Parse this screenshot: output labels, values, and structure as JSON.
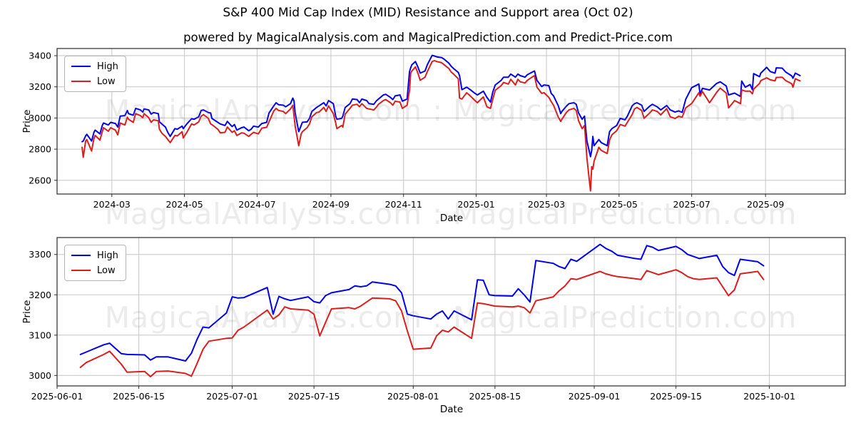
{
  "header": {
    "title": "S&P 400 Mid Cap Index (MID) Resistance and Support area (Oct 02)",
    "subtitle": "powered by MagicalAnalysis.com and MagicalPrediction.com and Predict-Price.com"
  },
  "watermark": {
    "text": "MagicalAnalysis.com : MagicalPrediction.com"
  },
  "colors": {
    "high": "#0000ee",
    "low": "#dd1c1c",
    "grid": "#c6c6c6",
    "spine": "#2a2a2a",
    "tick_text": "#000000"
  },
  "chart_data": [
    {
      "type": "line",
      "xlabel": "Date",
      "ylabel": "Price",
      "grid": true,
      "legend_position": "upper-left",
      "x_domain": [
        "2024-01-15",
        "2025-11-07"
      ],
      "y_domain": [
        2512,
        3446
      ],
      "y_ticks": [
        2600,
        2800,
        3000,
        3200,
        3400
      ],
      "x_ticks": [
        {
          "label": "2024-03",
          "date": "2024-03-01"
        },
        {
          "label": "2024-05",
          "date": "2024-05-01"
        },
        {
          "label": "2024-07",
          "date": "2024-07-01"
        },
        {
          "label": "2024-09",
          "date": "2024-09-01"
        },
        {
          "label": "2024-11",
          "date": "2024-11-01"
        },
        {
          "label": "2025-01",
          "date": "2025-01-01"
        },
        {
          "label": "2025-03",
          "date": "2025-03-01"
        },
        {
          "label": "2025-05",
          "date": "2025-05-01"
        },
        {
          "label": "2025-07",
          "date": "2025-07-01"
        },
        {
          "label": "2025-09",
          "date": "2025-09-01"
        }
      ],
      "series": [
        {
          "name": "High",
          "key": "high",
          "color_key": "high"
        },
        {
          "name": "Low",
          "key": "low",
          "color_key": "low"
        }
      ],
      "dates": [
        "2024-02-05",
        "2024-02-06",
        "2024-02-08",
        "2024-02-09",
        "2024-02-13",
        "2024-02-15",
        "2024-02-16",
        "2024-02-20",
        "2024-02-22",
        "2024-02-23",
        "2024-02-27",
        "2024-02-29",
        "2024-03-04",
        "2024-03-06",
        "2024-03-08",
        "2024-03-12",
        "2024-03-14",
        "2024-03-15",
        "2024-03-19",
        "2024-03-21",
        "2024-03-25",
        "2024-03-27",
        "2024-03-28",
        "2024-04-01",
        "2024-04-03",
        "2024-04-05",
        "2024-04-09",
        "2024-04-10",
        "2024-04-12",
        "2024-04-15",
        "2024-04-17",
        "2024-04-19",
        "2024-04-23",
        "2024-04-25",
        "2024-04-29",
        "2024-04-30",
        "2024-05-03",
        "2024-05-07",
        "2024-05-09",
        "2024-05-13",
        "2024-05-15",
        "2024-05-17",
        "2024-05-21",
        "2024-05-23",
        "2024-05-24",
        "2024-05-29",
        "2024-05-31",
        "2024-06-04",
        "2024-06-06",
        "2024-06-10",
        "2024-06-12",
        "2024-06-14",
        "2024-06-18",
        "2024-06-20",
        "2024-06-24",
        "2024-06-26",
        "2024-06-28",
        "2024-07-02",
        "2024-07-05",
        "2024-07-09",
        "2024-07-11",
        "2024-07-15",
        "2024-07-17",
        "2024-07-19",
        "2024-07-23",
        "2024-07-25",
        "2024-07-29",
        "2024-07-31",
        "2024-08-01",
        "2024-08-02",
        "2024-08-05",
        "2024-08-07",
        "2024-08-08",
        "2024-08-12",
        "2024-08-14",
        "2024-08-16",
        "2024-08-20",
        "2024-08-22",
        "2024-08-26",
        "2024-08-28",
        "2024-08-30",
        "2024-09-03",
        "2024-09-05",
        "2024-09-06",
        "2024-09-10",
        "2024-09-11",
        "2024-09-13",
        "2024-09-17",
        "2024-09-19",
        "2024-09-23",
        "2024-09-25",
        "2024-09-27",
        "2024-10-01",
        "2024-10-03",
        "2024-10-07",
        "2024-10-09",
        "2024-10-11",
        "2024-10-15",
        "2024-10-17",
        "2024-10-21",
        "2024-10-23",
        "2024-10-25",
        "2024-10-29",
        "2024-10-31",
        "2024-11-04",
        "2024-11-06",
        "2024-11-07",
        "2024-11-08",
        "2024-11-11",
        "2024-11-13",
        "2024-11-15",
        "2024-11-19",
        "2024-11-21",
        "2024-11-25",
        "2024-11-27",
        "2024-11-29",
        "2024-12-03",
        "2024-12-05",
        "2024-12-09",
        "2024-12-11",
        "2024-12-13",
        "2024-12-17",
        "2024-12-18",
        "2024-12-20",
        "2024-12-24",
        "2024-12-27",
        "2024-12-31",
        "2025-01-02",
        "2025-01-07",
        "2025-01-10",
        "2025-01-13",
        "2025-01-15",
        "2025-01-17",
        "2025-01-22",
        "2025-01-24",
        "2025-01-28",
        "2025-01-30",
        "2025-02-03",
        "2025-02-05",
        "2025-02-07",
        "2025-02-11",
        "2025-02-13",
        "2025-02-18",
        "2025-02-19",
        "2025-02-21",
        "2025-02-25",
        "2025-02-27",
        "2025-03-03",
        "2025-03-05",
        "2025-03-07",
        "2025-03-11",
        "2025-03-13",
        "2025-03-14",
        "2025-03-18",
        "2025-03-20",
        "2025-03-24",
        "2025-03-26",
        "2025-03-28",
        "2025-03-31",
        "2025-04-02",
        "2025-04-03",
        "2025-04-04",
        "2025-04-07",
        "2025-04-08",
        "2025-04-09",
        "2025-04-10",
        "2025-04-14",
        "2025-04-16",
        "2025-04-21",
        "2025-04-23",
        "2025-04-25",
        "2025-04-29",
        "2025-05-02",
        "2025-05-06",
        "2025-05-08",
        "2025-05-12",
        "2025-05-14",
        "2025-05-16",
        "2025-05-20",
        "2025-05-22",
        "2025-05-27",
        "2025-05-29",
        "2025-06-02",
        "2025-06-05",
        "2025-06-10",
        "2025-06-13",
        "2025-06-17",
        "2025-06-20",
        "2025-06-23",
        "2025-06-26",
        "2025-07-01",
        "2025-07-07",
        "2025-07-08",
        "2025-07-10",
        "2025-07-16",
        "2025-07-22",
        "2025-07-25",
        "2025-07-30",
        "2025-08-01",
        "2025-08-06",
        "2025-08-11",
        "2025-08-12",
        "2025-08-15",
        "2025-08-19",
        "2025-08-21",
        "2025-08-22",
        "2025-08-27",
        "2025-08-28",
        "2025-09-02",
        "2025-09-05",
        "2025-09-09",
        "2025-09-10",
        "2025-09-15",
        "2025-09-18",
        "2025-09-23",
        "2025-09-24",
        "2025-09-26",
        "2025-09-30"
      ],
      "high": [
        2848,
        2852,
        2885,
        2895,
        2852,
        2908,
        2922,
        2898,
        2952,
        2968,
        2955,
        2972,
        2965,
        2942,
        3012,
        3015,
        3048,
        3028,
        3018,
        3062,
        3052,
        3038,
        3058,
        3052,
        3025,
        3035,
        3028,
        2975,
        2962,
        2942,
        2908,
        2882,
        2932,
        2928,
        2948,
        2932,
        2962,
        2995,
        2992,
        3008,
        3048,
        3052,
        3035,
        3032,
        2998,
        2972,
        2962,
        2952,
        2978,
        2945,
        2958,
        2922,
        2938,
        2942,
        2918,
        2928,
        2948,
        2942,
        2965,
        2972,
        3032,
        3078,
        3098,
        3085,
        3082,
        3072,
        3092,
        3128,
        3108,
        3032,
        2912,
        2952,
        2972,
        2975,
        2998,
        3042,
        3068,
        3078,
        3098,
        3078,
        3112,
        3092,
        3012,
        2992,
        2998,
        3012,
        3068,
        3092,
        3122,
        3118,
        3098,
        3122,
        3112,
        3092,
        3088,
        3108,
        3122,
        3148,
        3152,
        3132,
        3118,
        3142,
        3148,
        3108,
        3122,
        3298,
        3322,
        3342,
        3362,
        3328,
        3288,
        3302,
        3342,
        3402,
        3398,
        3392,
        3388,
        3378,
        3352,
        3332,
        3318,
        3292,
        3272,
        3182,
        3198,
        3182,
        3158,
        3148,
        3172,
        3132,
        3102,
        3168,
        3212,
        3242,
        3262,
        3262,
        3282,
        3262,
        3282,
        3272,
        3262,
        3278,
        3298,
        3302,
        3242,
        3202,
        3212,
        3208,
        3158,
        3142,
        3078,
        3028,
        3042,
        3078,
        3092,
        3098,
        3088,
        3032,
        2992,
        3012,
        2932,
        2852,
        2752,
        2792,
        2882,
        2822,
        2862,
        2842,
        2822,
        2912,
        2932,
        2952,
        2998,
        2988,
        3012,
        3078,
        3092,
        3098,
        3082,
        3042,
        3078,
        3088,
        3072,
        3052,
        3080,
        3052,
        3038,
        3046,
        3036,
        3120,
        3195,
        3218,
        3152,
        3190,
        3180,
        3222,
        3232,
        3205,
        3148,
        3160,
        3138,
        3237,
        3198,
        3215,
        3182,
        3285,
        3265,
        3288,
        3325,
        3298,
        3288,
        3322,
        3320,
        3295,
        3270,
        3255,
        3288,
        3272
      ],
      "low": [
        2812,
        2748,
        2852,
        2862,
        2788,
        2868,
        2888,
        2858,
        2912,
        2938,
        2915,
        2938,
        2922,
        2892,
        2968,
        2955,
        3005,
        2992,
        2972,
        3028,
        3015,
        3002,
        3028,
        3002,
        2972,
        2988,
        2982,
        2928,
        2902,
        2882,
        2862,
        2842,
        2888,
        2885,
        2912,
        2872,
        2908,
        2962,
        2955,
        2975,
        3012,
        3022,
        2998,
        2962,
        2958,
        2928,
        2905,
        2908,
        2942,
        2908,
        2918,
        2888,
        2905,
        2902,
        2882,
        2895,
        2908,
        2898,
        2935,
        2940,
        2975,
        3045,
        3062,
        3048,
        3042,
        3028,
        3058,
        3082,
        3012,
        2948,
        2822,
        2898,
        2912,
        2938,
        2962,
        3008,
        3035,
        3038,
        3068,
        3042,
        3078,
        3028,
        2968,
        2932,
        2952,
        2942,
        3025,
        3062,
        3082,
        3088,
        3072,
        3092,
        3062,
        3058,
        3052,
        3068,
        3088,
        3112,
        3118,
        3098,
        3082,
        3108,
        3102,
        3062,
        3082,
        3178,
        3288,
        3302,
        3328,
        3288,
        3242,
        3262,
        3298,
        3362,
        3368,
        3362,
        3355,
        3342,
        3318,
        3295,
        3282,
        3252,
        3128,
        3122,
        3162,
        3142,
        3112,
        3098,
        3135,
        3072,
        3062,
        3122,
        3178,
        3208,
        3228,
        3218,
        3248,
        3212,
        3248,
        3232,
        3225,
        3242,
        3268,
        3272,
        3198,
        3158,
        3162,
        3132,
        3105,
        3082,
        3005,
        2978,
        2992,
        3038,
        3052,
        3062,
        3048,
        2982,
        2932,
        2952,
        2852,
        2742,
        2532,
        2688,
        2672,
        2722,
        2812,
        2792,
        2772,
        2858,
        2892,
        2918,
        2958,
        2948,
        2972,
        3022,
        3058,
        3068,
        3048,
        2998,
        3035,
        3052,
        3042,
        3020,
        3060,
        3008,
        2997,
        3011,
        3005,
        3065,
        3093,
        3162,
        3140,
        3170,
        3098,
        3165,
        3192,
        3160,
        3065,
        3112,
        3092,
        3180,
        3172,
        3172,
        3155,
        3185,
        3222,
        3240,
        3258,
        3245,
        3238,
        3260,
        3262,
        3240,
        3220,
        3198,
        3252,
        3238
      ]
    },
    {
      "type": "line",
      "xlabel": "Date",
      "ylabel": "Price",
      "grid": true,
      "legend_position": "upper-left",
      "x_domain": [
        "2025-06-01",
        "2025-10-14"
      ],
      "y_domain": [
        2974,
        3342
      ],
      "y_ticks": [
        3000,
        3100,
        3200,
        3300
      ],
      "x_ticks": [
        {
          "label": "2025-06-01",
          "date": "2025-06-01"
        },
        {
          "label": "2025-06-15",
          "date": "2025-06-15"
        },
        {
          "label": "2025-07-01",
          "date": "2025-07-01"
        },
        {
          "label": "2025-07-15",
          "date": "2025-07-15"
        },
        {
          "label": "2025-08-01",
          "date": "2025-08-01"
        },
        {
          "label": "2025-08-15",
          "date": "2025-08-15"
        },
        {
          "label": "2025-09-01",
          "date": "2025-09-01"
        },
        {
          "label": "2025-09-15",
          "date": "2025-09-15"
        },
        {
          "label": "2025-10-01",
          "date": "2025-10-01"
        }
      ],
      "series": [
        {
          "name": "High",
          "key": "high",
          "color_key": "high"
        },
        {
          "name": "Low",
          "key": "low",
          "color_key": "low"
        }
      ],
      "dates": [
        "2025-06-05",
        "2025-06-06",
        "2025-06-09",
        "2025-06-10",
        "2025-06-12",
        "2025-06-13",
        "2025-06-16",
        "2025-06-17",
        "2025-06-18",
        "2025-06-20",
        "2025-06-23",
        "2025-06-24",
        "2025-06-25",
        "2025-06-26",
        "2025-06-27",
        "2025-06-30",
        "2025-07-01",
        "2025-07-02",
        "2025-07-03",
        "2025-07-07",
        "2025-07-08",
        "2025-07-09",
        "2025-07-10",
        "2025-07-11",
        "2025-07-14",
        "2025-07-15",
        "2025-07-16",
        "2025-07-17",
        "2025-07-18",
        "2025-07-21",
        "2025-07-22",
        "2025-07-23",
        "2025-07-24",
        "2025-07-25",
        "2025-07-28",
        "2025-07-29",
        "2025-07-30",
        "2025-07-31",
        "2025-08-01",
        "2025-08-04",
        "2025-08-05",
        "2025-08-06",
        "2025-08-07",
        "2025-08-08",
        "2025-08-11",
        "2025-08-12",
        "2025-08-13",
        "2025-08-14",
        "2025-08-15",
        "2025-08-18",
        "2025-08-19",
        "2025-08-20",
        "2025-08-21",
        "2025-08-22",
        "2025-08-25",
        "2025-08-26",
        "2025-08-27",
        "2025-08-28",
        "2025-08-29",
        "2025-09-02",
        "2025-09-03",
        "2025-09-04",
        "2025-09-05",
        "2025-09-08",
        "2025-09-09",
        "2025-09-10",
        "2025-09-11",
        "2025-09-12",
        "2025-09-15",
        "2025-09-16",
        "2025-09-17",
        "2025-09-18",
        "2025-09-19",
        "2025-09-22",
        "2025-09-23",
        "2025-09-24",
        "2025-09-25",
        "2025-09-26",
        "2025-09-29",
        "2025-09-30"
      ],
      "high": [
        3052,
        3058,
        3076,
        3080,
        3054,
        3052,
        3051,
        3038,
        3046,
        3046,
        3036,
        3055,
        3090,
        3120,
        3118,
        3155,
        3195,
        3192,
        3193,
        3218,
        3152,
        3196,
        3190,
        3186,
        3195,
        3183,
        3180,
        3198,
        3205,
        3213,
        3222,
        3220,
        3222,
        3232,
        3226,
        3222,
        3205,
        3152,
        3148,
        3140,
        3152,
        3160,
        3140,
        3160,
        3138,
        3237,
        3236,
        3200,
        3198,
        3197,
        3215,
        3200,
        3182,
        3285,
        3278,
        3270,
        3265,
        3288,
        3283,
        3325,
        3315,
        3308,
        3298,
        3290,
        3288,
        3322,
        3318,
        3310,
        3320,
        3312,
        3300,
        3295,
        3290,
        3298,
        3270,
        3255,
        3248,
        3288,
        3282,
        3272
      ],
      "low": [
        3020,
        3032,
        3052,
        3060,
        3028,
        3008,
        3010,
        2997,
        3010,
        3011,
        3005,
        2998,
        3030,
        3065,
        3085,
        3092,
        3093,
        3112,
        3120,
        3162,
        3140,
        3150,
        3170,
        3165,
        3162,
        3152,
        3098,
        3132,
        3165,
        3168,
        3165,
        3172,
        3182,
        3192,
        3190,
        3185,
        3160,
        3110,
        3065,
        3068,
        3098,
        3112,
        3108,
        3120,
        3092,
        3180,
        3178,
        3175,
        3172,
        3170,
        3172,
        3168,
        3155,
        3185,
        3195,
        3210,
        3222,
        3240,
        3238,
        3258,
        3252,
        3248,
        3245,
        3240,
        3238,
        3260,
        3255,
        3250,
        3262,
        3255,
        3245,
        3240,
        3238,
        3242,
        3220,
        3198,
        3212,
        3252,
        3258,
        3238
      ]
    }
  ]
}
